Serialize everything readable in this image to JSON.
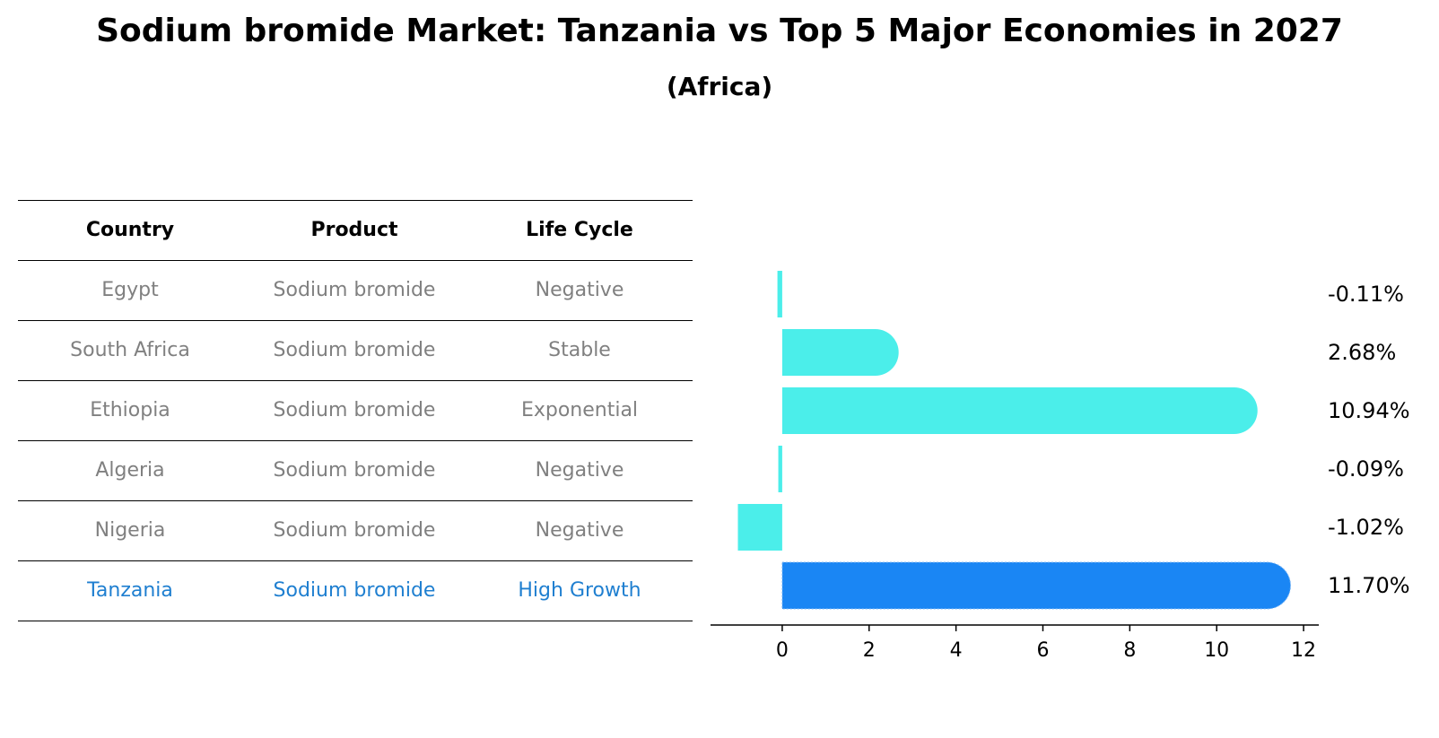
{
  "title": "Sodium bromide Market: Tanzania vs Top 5 Major Economies in 2027",
  "subtitle": "(Africa)",
  "table": {
    "headers": [
      "Country",
      "Product",
      "Life Cycle"
    ],
    "rows": [
      {
        "country": "Egypt",
        "product": "Sodium bromide",
        "life_cycle": "Negative"
      },
      {
        "country": "South Africa",
        "product": "Sodium bromide",
        "life_cycle": "Stable"
      },
      {
        "country": "Ethiopia",
        "product": "Sodium bromide",
        "life_cycle": "Exponential"
      },
      {
        "country": "Algeria",
        "product": "Sodium bromide",
        "life_cycle": "Negative"
      },
      {
        "country": "Nigeria",
        "product": "Sodium bromide",
        "life_cycle": "Negative"
      },
      {
        "country": "Tanzania",
        "product": "Sodium bromide",
        "life_cycle": "High Growth"
      }
    ]
  },
  "chart_data": {
    "type": "bar",
    "orientation": "horizontal",
    "categories": [
      "Egypt",
      "South Africa",
      "Ethiopia",
      "Algeria",
      "Nigeria",
      "Tanzania"
    ],
    "values": [
      -0.11,
      2.68,
      10.94,
      -0.09,
      -1.02,
      11.7
    ],
    "value_labels": [
      "-0.11%",
      "2.68%",
      "10.94%",
      "-0.09%",
      "-1.02%",
      "11.70%"
    ],
    "highlight": "Tanzania",
    "xlim": [
      -1.65,
      12.35
    ],
    "xticks": [
      0,
      2,
      4,
      6,
      8,
      10,
      12
    ],
    "xtick_labels": [
      "0",
      "2",
      "4",
      "6",
      "8",
      "10",
      "12"
    ],
    "colors": {
      "default": "#4beeea",
      "highlight": "#1a86f4",
      "highlight_label": "#1f7fd0",
      "muted_text": "#808080"
    }
  }
}
